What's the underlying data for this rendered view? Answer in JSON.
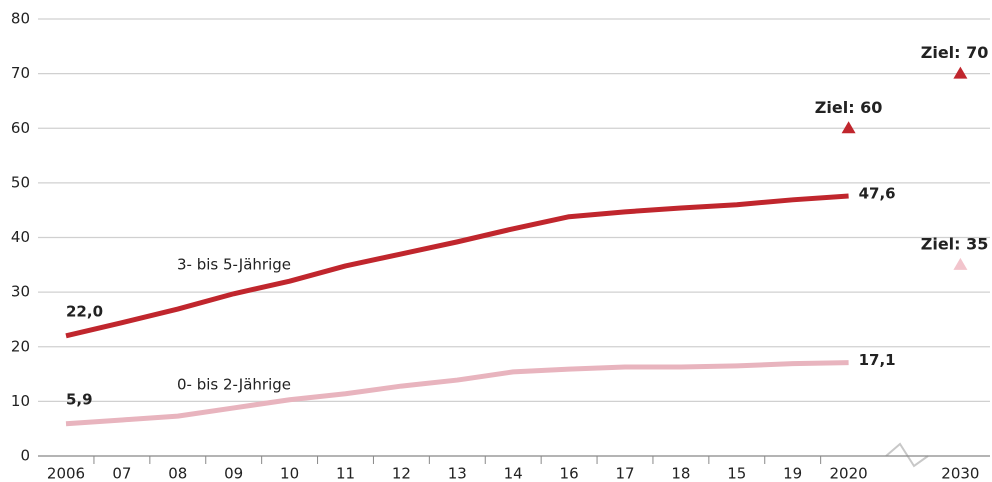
{
  "chart_data": {
    "type": "line",
    "categories": [
      "2006",
      "07",
      "08",
      "09",
      "10",
      "11",
      "12",
      "13",
      "14",
      "16",
      "17",
      "18",
      "15",
      "19",
      "2020",
      null,
      "2030"
    ],
    "series": [
      {
        "name": "3- bis 5-Jährige",
        "color": "#c0262d",
        "values": [
          22.0,
          24.4,
          26.9,
          29.7,
          32.0,
          34.8,
          37.0,
          39.2,
          41.6,
          43.8,
          44.7,
          45.4,
          46.0,
          46.9,
          47.6,
          null,
          null
        ],
        "value_labels": [
          "22,0",
          null,
          null,
          null,
          null,
          null,
          null,
          null,
          null,
          null,
          null,
          null,
          null,
          null,
          "47,6",
          null,
          null
        ],
        "targets": [
          {
            "x": "2020",
            "value": 60,
            "label": "Ziel: 60"
          },
          {
            "x": "2030",
            "value": 70,
            "label": "Ziel: 70"
          }
        ]
      },
      {
        "name": "0- bis 2-Jährige",
        "color": "#e8b4be",
        "values": [
          5.9,
          6.6,
          7.3,
          8.8,
          10.3,
          11.4,
          12.8,
          13.9,
          15.4,
          15.9,
          16.3,
          16.3,
          16.5,
          16.9,
          17.1,
          null,
          null
        ],
        "value_labels": [
          "5,9",
          null,
          null,
          null,
          null,
          null,
          null,
          null,
          null,
          null,
          null,
          null,
          null,
          null,
          "17,1",
          null,
          null
        ],
        "targets": [
          {
            "x": "2030",
            "value": 35,
            "label": "Ziel: 35"
          }
        ]
      }
    ],
    "ylim": [
      0,
      80
    ],
    "yticks": [
      0,
      10,
      20,
      30,
      40,
      50,
      60,
      70,
      80
    ],
    "grid": true
  }
}
